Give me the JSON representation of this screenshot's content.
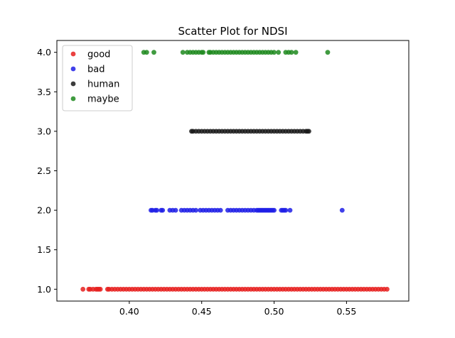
{
  "chart_data": {
    "type": "scatter",
    "title": "Scatter Plot for NDSI",
    "xlabel": "",
    "ylabel": "",
    "xlim": [
      0.35,
      0.593
    ],
    "ylim": [
      0.85,
      4.15
    ],
    "xticks": [
      "0.40",
      "0.45",
      "0.50",
      "0.55"
    ],
    "yticks": [
      "1.0",
      "1.5",
      "2.0",
      "2.5",
      "3.0",
      "3.5",
      "4.0"
    ],
    "grid": false,
    "legend_position": "top-left",
    "series": [
      {
        "name": "good",
        "color": "#e6201f",
        "y": 1.0,
        "x": [
          0.368,
          0.372,
          0.373,
          0.375,
          0.377,
          0.378,
          0.379,
          0.38,
          0.385,
          0.386,
          0.388,
          0.39,
          0.392,
          0.394,
          0.396,
          0.398,
          0.4,
          0.402,
          0.404,
          0.406,
          0.408,
          0.41,
          0.412,
          0.414,
          0.416,
          0.418,
          0.42,
          0.422,
          0.424,
          0.426,
          0.428,
          0.43,
          0.432,
          0.434,
          0.436,
          0.438,
          0.44,
          0.442,
          0.444,
          0.446,
          0.448,
          0.45,
          0.452,
          0.454,
          0.456,
          0.458,
          0.46,
          0.462,
          0.464,
          0.466,
          0.468,
          0.47,
          0.472,
          0.474,
          0.476,
          0.478,
          0.48,
          0.482,
          0.484,
          0.486,
          0.488,
          0.49,
          0.492,
          0.494,
          0.496,
          0.498,
          0.5,
          0.502,
          0.504,
          0.506,
          0.508,
          0.51,
          0.512,
          0.514,
          0.516,
          0.518,
          0.52,
          0.522,
          0.524,
          0.526,
          0.528,
          0.53,
          0.532,
          0.534,
          0.536,
          0.538,
          0.54,
          0.542,
          0.544,
          0.546,
          0.548,
          0.55,
          0.552,
          0.554,
          0.556,
          0.558,
          0.56,
          0.562,
          0.564,
          0.566,
          0.568,
          0.57,
          0.572,
          0.574,
          0.576,
          0.578
        ]
      },
      {
        "name": "bad",
        "color": "#1f1fe6",
        "y": 2.0,
        "x": [
          0.415,
          0.416,
          0.418,
          0.419,
          0.422,
          0.423,
          0.428,
          0.43,
          0.432,
          0.436,
          0.438,
          0.44,
          0.442,
          0.444,
          0.446,
          0.449,
          0.451,
          0.453,
          0.455,
          0.457,
          0.459,
          0.461,
          0.463,
          0.468,
          0.47,
          0.472,
          0.474,
          0.476,
          0.478,
          0.48,
          0.482,
          0.484,
          0.486,
          0.488,
          0.489,
          0.49,
          0.491,
          0.492,
          0.493,
          0.494,
          0.495,
          0.496,
          0.497,
          0.498,
          0.499,
          0.5,
          0.505,
          0.506,
          0.507,
          0.508,
          0.511,
          0.547
        ]
      },
      {
        "name": "human",
        "color": "#1a1a1a",
        "y": 3.0,
        "x": [
          0.443,
          0.444,
          0.446,
          0.448,
          0.45,
          0.452,
          0.454,
          0.456,
          0.458,
          0.46,
          0.462,
          0.464,
          0.466,
          0.468,
          0.47,
          0.472,
          0.474,
          0.476,
          0.478,
          0.48,
          0.482,
          0.484,
          0.486,
          0.488,
          0.49,
          0.492,
          0.494,
          0.496,
          0.498,
          0.5,
          0.502,
          0.504,
          0.506,
          0.508,
          0.51,
          0.512,
          0.514,
          0.516,
          0.518,
          0.52,
          0.522,
          0.523,
          0.524
        ]
      },
      {
        "name": "maybe",
        "color": "#1f8a1f",
        "y": 4.0,
        "x": [
          0.41,
          0.412,
          0.417,
          0.437,
          0.44,
          0.442,
          0.444,
          0.446,
          0.448,
          0.45,
          0.451,
          0.455,
          0.456,
          0.458,
          0.46,
          0.462,
          0.464,
          0.466,
          0.468,
          0.47,
          0.472,
          0.474,
          0.476,
          0.478,
          0.48,
          0.482,
          0.484,
          0.486,
          0.488,
          0.49,
          0.492,
          0.494,
          0.496,
          0.498,
          0.5,
          0.503,
          0.508,
          0.51,
          0.512,
          0.515,
          0.537
        ]
      }
    ]
  }
}
